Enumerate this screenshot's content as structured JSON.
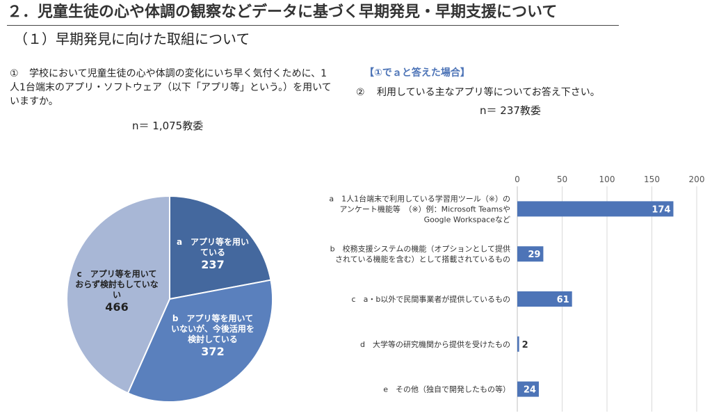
{
  "header": {
    "title": "２．児童生徒の心や体調の観察などデータに基づく早期発見・早期支援について",
    "subtitle": "（１）早期発見に向けた取組について"
  },
  "q1": {
    "num": "①",
    "text": "学校において児童生徒の心や体調の変化にいち早く気付くために、1人1台端末のアプリ・ソフトウェア（以下「アプリ等」という。）を用いていますか。",
    "n": "n＝ 1,075教委"
  },
  "q2": {
    "condition": "【①でａと答えた場合】",
    "num": "②",
    "text": "利用している主なアプリ等についてお答え下さい。",
    "n": "n＝ 237教委"
  },
  "chart_data": [
    {
      "type": "pie",
      "slices": [
        {
          "label": [
            "a　アプリ等を用い",
            "ている"
          ],
          "value": 237,
          "color": "#44689e"
        },
        {
          "label": [
            "b　アプリ等を用いて",
            "いないが、今後活用を",
            "検討している"
          ],
          "value": 372,
          "color": "#5a80bd"
        },
        {
          "label": [
            "c　アプリ等を用いて",
            "おらず検討もしていな",
            "い"
          ],
          "value": 466,
          "color": "#a8b7d6"
        }
      ]
    },
    {
      "type": "bar",
      "orientation": "horizontal",
      "xlim": [
        0,
        200
      ],
      "xticks": [
        0,
        50,
        100,
        150,
        200
      ],
      "color": "#4d74b7",
      "categories": [
        [
          "a　1人1台端末で利用している学習用ツール（※）の",
          "アンケート機能等　（※）例：Microsoft Teamsや",
          "Google Workspaceなど"
        ],
        [
          "b　校務支援システムの機能（オプションとして提供",
          "されている機能を含む）として搭載されているもの"
        ],
        [
          "c　a・b以外で民間事業者が提供しているもの"
        ],
        [
          "d　大学等の研究機関から提供を受けたもの"
        ],
        [
          "e　その他（独自で開発したもの等）"
        ]
      ],
      "values": [
        174,
        29,
        61,
        2,
        24
      ]
    }
  ]
}
